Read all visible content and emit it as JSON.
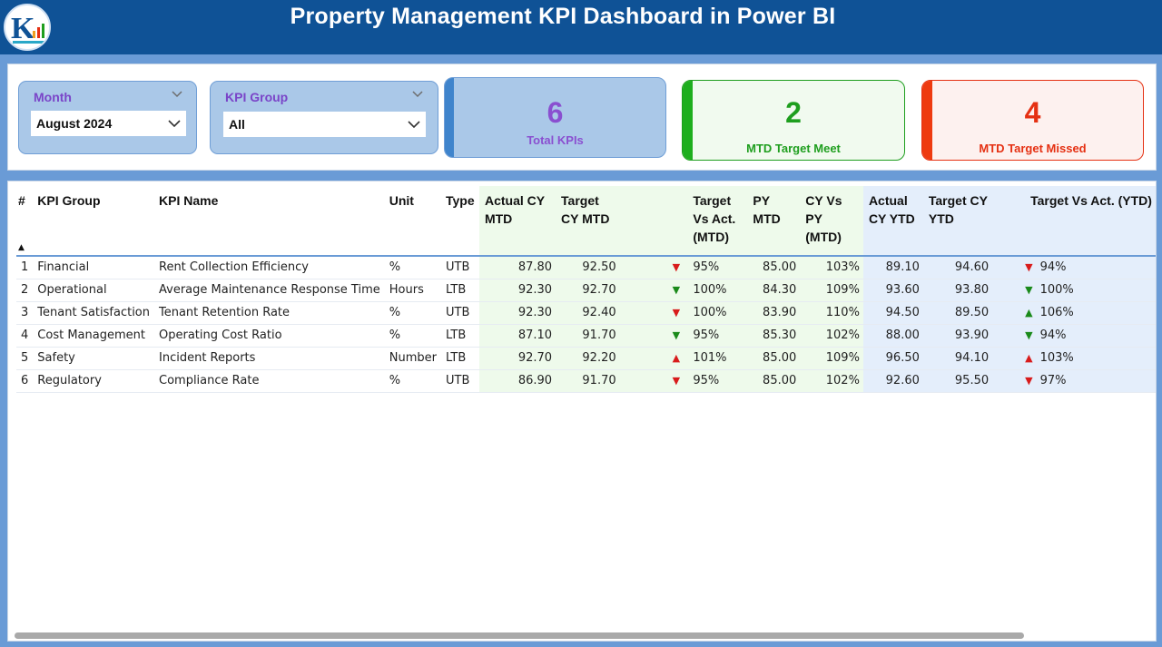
{
  "header": {
    "title": "Property Management KPI Dashboard in Power BI"
  },
  "slicers": {
    "month": {
      "label": "Month",
      "value": "August 2024"
    },
    "kpi_group": {
      "label": "KPI Group",
      "value": "All"
    }
  },
  "cards": {
    "total": {
      "value": "6",
      "label": "Total KPIs"
    },
    "meet": {
      "value": "2",
      "label": "MTD Target Meet"
    },
    "missed": {
      "value": "4",
      "label": "MTD Target Missed"
    }
  },
  "table": {
    "columns": {
      "num": "#",
      "kpi_group": "KPI Group",
      "kpi_name": "KPI Name",
      "unit": "Unit",
      "type": "Type",
      "actual_cy_mtd": "Actual CY MTD",
      "target_cy_mtd": "Target CY MTD",
      "target_vs_act_mtd": "Target Vs Act. (MTD)",
      "py_mtd": "PY MTD",
      "cy_vs_py_mtd": "CY Vs PY (MTD)",
      "actual_cy_ytd": "Actual CY YTD",
      "target_cy_ytd": "Target CY YTD",
      "target_vs_act_ytd": "Target Vs Act. (YTD)"
    },
    "rows": [
      {
        "num": "1",
        "kpi_group": "Financial",
        "kpi_name": "Rent Collection Efficiency",
        "unit": "%",
        "type": "UTB",
        "actual_cy_mtd": "87.80",
        "target_cy_mtd": "92.50",
        "mtd_arrow": "▼",
        "mtd_pct": "95%",
        "py_mtd": "85.00",
        "cy_vs_py": "103%",
        "actual_cy_ytd": "89.10",
        "target_cy_ytd": "94.60",
        "ytd_arrow": "▼",
        "ytd_pct": "94%"
      },
      {
        "num": "2",
        "kpi_group": "Operational",
        "kpi_name": "Average Maintenance Response Time",
        "unit": "Hours",
        "type": "LTB",
        "actual_cy_mtd": "92.30",
        "target_cy_mtd": "92.70",
        "mtd_arrow": "▼",
        "mtd_pct": "100%",
        "py_mtd": "84.30",
        "cy_vs_py": "109%",
        "actual_cy_ytd": "93.60",
        "target_cy_ytd": "93.80",
        "ytd_arrow": "▼",
        "ytd_pct": "100%"
      },
      {
        "num": "3",
        "kpi_group": "Tenant Satisfaction",
        "kpi_name": "Tenant Retention Rate",
        "unit": "%",
        "type": "UTB",
        "actual_cy_mtd": "92.30",
        "target_cy_mtd": "92.40",
        "mtd_arrow": "▼",
        "mtd_pct": "100%",
        "py_mtd": "83.90",
        "cy_vs_py": "110%",
        "actual_cy_ytd": "94.50",
        "target_cy_ytd": "89.50",
        "ytd_arrow": "▲",
        "ytd_pct": "106%"
      },
      {
        "num": "4",
        "kpi_group": "Cost Management",
        "kpi_name": "Operating Cost Ratio",
        "unit": "%",
        "type": "LTB",
        "actual_cy_mtd": "87.10",
        "target_cy_mtd": "91.70",
        "mtd_arrow": "▼",
        "mtd_pct": "95%",
        "py_mtd": "85.30",
        "cy_vs_py": "102%",
        "actual_cy_ytd": "88.00",
        "target_cy_ytd": "93.90",
        "ytd_arrow": "▼",
        "ytd_pct": "94%"
      },
      {
        "num": "5",
        "kpi_group": "Safety",
        "kpi_name": "Incident Reports",
        "unit": "Number",
        "type": "LTB",
        "actual_cy_mtd": "92.70",
        "target_cy_mtd": "92.20",
        "mtd_arrow": "▲",
        "mtd_pct": "101%",
        "py_mtd": "85.00",
        "cy_vs_py": "109%",
        "actual_cy_ytd": "96.50",
        "target_cy_ytd": "94.10",
        "ytd_arrow": "▲",
        "ytd_pct": "103%"
      },
      {
        "num": "6",
        "kpi_group": "Regulatory",
        "kpi_name": "Compliance Rate",
        "unit": "%",
        "type": "UTB",
        "actual_cy_mtd": "86.90",
        "target_cy_mtd": "91.70",
        "mtd_arrow": "▼",
        "mtd_pct": "95%",
        "py_mtd": "85.00",
        "cy_vs_py": "102%",
        "actual_cy_ytd": "92.60",
        "target_cy_ytd": "95.50",
        "ytd_arrow": "▼",
        "ytd_pct": "97%"
      }
    ]
  },
  "colors": {
    "header_bg": "#0f5296",
    "frame": "#6a9bd6",
    "meet_green": "#1e9e1e",
    "missed_red": "#e53012",
    "total_purple": "#8a4fd0",
    "arrow_red": "#d81b1b",
    "arrow_green": "#1a8a1a",
    "mtd_column_bg": "#eefaeb",
    "ytd_column_bg": "#e4eefb"
  },
  "icons": {
    "logo": "logo-icon",
    "slicer_chevron": "chevron-down-icon",
    "dropdown": "chevron-down-icon",
    "sort": "sort-ascending-icon",
    "trend_down": "triangle-down-icon",
    "trend_up": "triangle-up-icon"
  }
}
